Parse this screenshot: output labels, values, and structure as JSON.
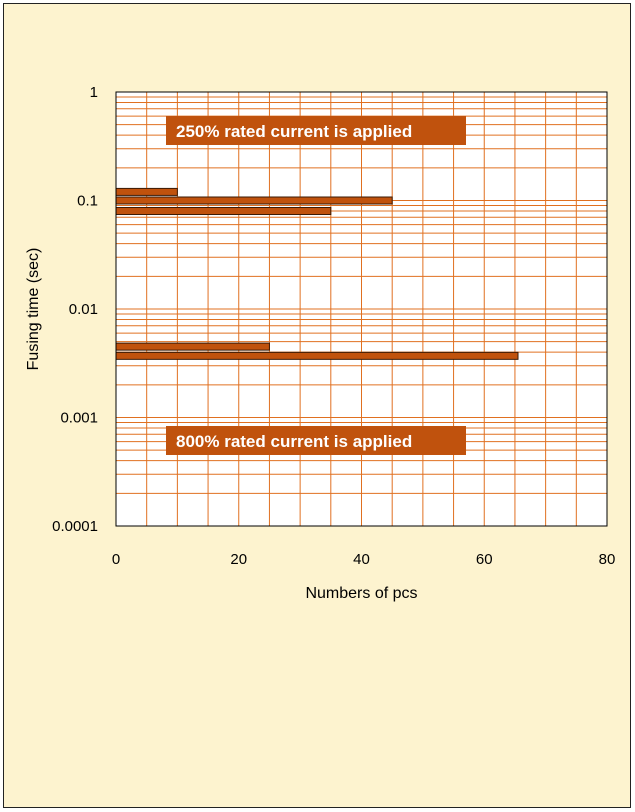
{
  "chart_data": {
    "type": "bar",
    "orientation": "horizontal",
    "title": "",
    "xlabel": "Numbers of pcs",
    "ylabel": "Fusing time (sec)",
    "xlim": [
      0,
      80
    ],
    "ylim": [
      0.0001,
      1
    ],
    "y_scale": "log",
    "x_ticks": [
      "0",
      "20",
      "40",
      "60",
      "80"
    ],
    "y_ticks": [
      "1",
      "0.1",
      "0.01",
      "0.001",
      "0.0001"
    ],
    "grid": true,
    "bars": [
      {
        "y": 0.12,
        "value": 10
      },
      {
        "y": 0.1,
        "value": 45
      },
      {
        "y": 0.08,
        "value": 35
      },
      {
        "y": 0.0045,
        "value": 25
      },
      {
        "y": 0.0037,
        "value": 65.5
      }
    ],
    "annotations": [
      {
        "text": "250% rated current is applied"
      },
      {
        "text": "800% rated current is applied"
      }
    ],
    "colors": {
      "background": "#fdf3cf",
      "plot_background": "#ffffff",
      "grid": "#e07020",
      "bar_fill": "#c0520d",
      "bar_stroke": "#3a1a05",
      "annotation_fill": "#c0520d"
    }
  }
}
